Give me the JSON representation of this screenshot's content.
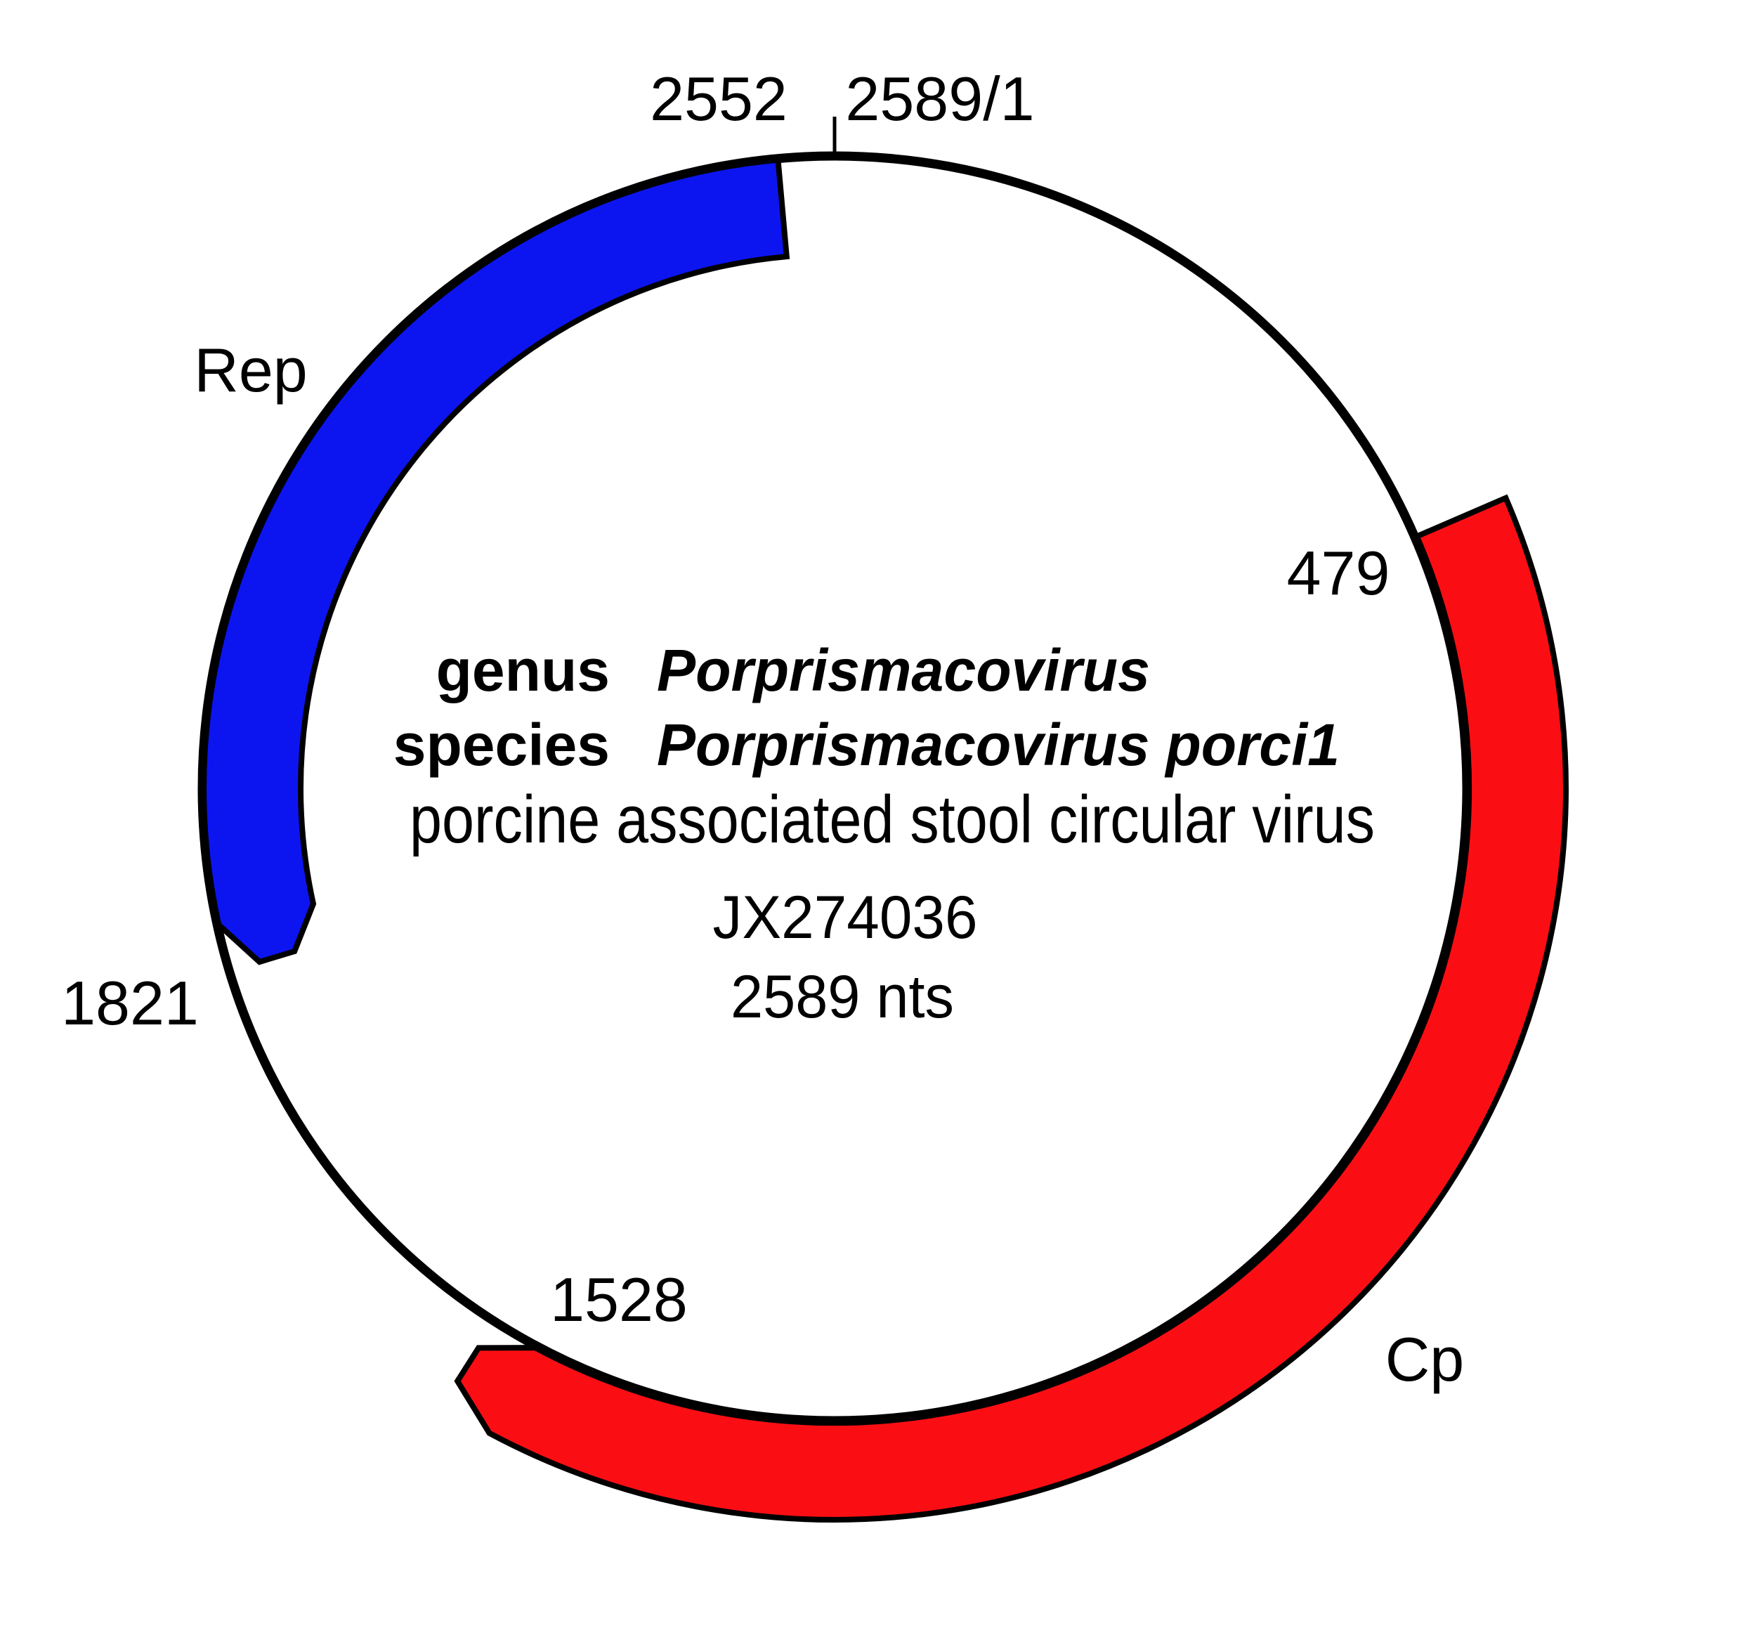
{
  "figure": {
    "type": "circular-genome-map",
    "genome_length": 2589,
    "labels": {
      "pos_2552": "2552",
      "origin": "2589/1",
      "pos_479": "479",
      "pos_1821": "1821",
      "pos_1528": "1528"
    },
    "center_text": {
      "genus_label": "genus",
      "genus_name": "Porprismacovirus",
      "species_label": "species",
      "species_name": "Porprismacovirus porci1",
      "common_name": "porcine associated stool circular virus",
      "accession": "JX274036",
      "length_label": "2589 nts"
    },
    "features": [
      {
        "name": "Rep",
        "start": 2552,
        "end": 1821,
        "direction": "ccw",
        "strand": "-",
        "color": "#0c15f0"
      },
      {
        "name": "Cp",
        "start": 479,
        "end": 1528,
        "direction": "cw",
        "strand": "+",
        "color": "#fa0e14"
      }
    ],
    "colors": {
      "outline": "#000000",
      "background": "#ffffff"
    }
  }
}
